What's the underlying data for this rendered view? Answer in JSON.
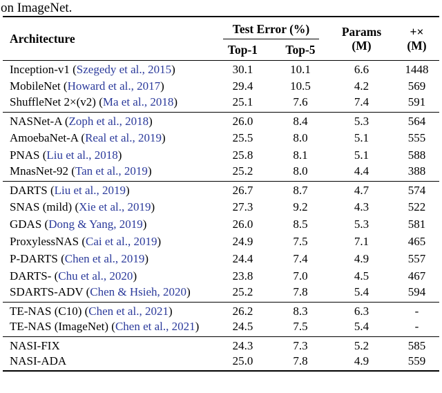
{
  "caption_fragment": "on ImageNet.",
  "colors": {
    "citation_link": "#2b3a9b",
    "text": "#000000",
    "rule": "#000000"
  },
  "header": {
    "architecture": "Architecture",
    "test_error": "Test Error (%)",
    "top1": "Top-1",
    "top5": "Top-5",
    "params_line1": "Params",
    "params_line2": "(M)",
    "flops_line1": "+×",
    "flops_line2": "(M)"
  },
  "groups": [
    {
      "rows": [
        {
          "name": "Inception-v1",
          "citation": "Szegedy et al., 2015",
          "top1": "30.1",
          "top5": "10.1",
          "params": "6.6",
          "flops": "1448"
        },
        {
          "name": "MobileNet",
          "citation": "Howard et al., 2017",
          "top1": "29.4",
          "top5": "10.5",
          "params": "4.2",
          "flops": "569"
        },
        {
          "name": "ShuffleNet 2×(v2)",
          "citation": "Ma et al., 2018",
          "top1": "25.1",
          "top5": "7.6",
          "params": "7.4",
          "flops": "591"
        }
      ]
    },
    {
      "rows": [
        {
          "name": "NASNet-A",
          "citation": "Zoph et al., 2018",
          "top1": "26.0",
          "top5": "8.4",
          "params": "5.3",
          "flops": "564"
        },
        {
          "name": "AmoebaNet-A",
          "citation": "Real et al., 2019",
          "top1": "25.5",
          "top5": "8.0",
          "params": "5.1",
          "flops": "555"
        },
        {
          "name": "PNAS",
          "citation": "Liu et al., 2018",
          "top1": "25.8",
          "top5": "8.1",
          "params": "5.1",
          "flops": "588"
        },
        {
          "name": "MnasNet-92",
          "citation": "Tan et al., 2019",
          "top1": "25.2",
          "top5": "8.0",
          "params": "4.4",
          "flops": "388"
        }
      ]
    },
    {
      "rows": [
        {
          "name": "DARTS",
          "citation": "Liu et al., 2019",
          "top1": "26.7",
          "top5": "8.7",
          "params": "4.7",
          "flops": "574"
        },
        {
          "name": "SNAS (mild)",
          "citation": "Xie et al., 2019",
          "top1": "27.3",
          "top5": "9.2",
          "params": "4.3",
          "flops": "522"
        },
        {
          "name": "GDAS",
          "citation": "Dong & Yang, 2019",
          "top1": "26.0",
          "top5": "8.5",
          "params": "5.3",
          "flops": "581"
        },
        {
          "name": "ProxylessNAS",
          "citation": "Cai et al., 2019",
          "top1": "24.9",
          "top5": "7.5",
          "params": "7.1",
          "flops": "465"
        },
        {
          "name": "P-DARTS",
          "citation": "Chen et al., 2019",
          "top1": "24.4",
          "top5": "7.4",
          "params": "4.9",
          "flops": "557"
        },
        {
          "name": "DARTS-",
          "citation": "Chu et al., 2020",
          "top1": "23.8",
          "top5": "7.0",
          "params": "4.5",
          "flops": "467"
        },
        {
          "name": "SDARTS-ADV",
          "citation": "Chen & Hsieh, 2020",
          "top1": "25.2",
          "top5": "7.8",
          "params": "5.4",
          "flops": "594"
        }
      ]
    },
    {
      "rows": [
        {
          "name": "TE-NAS (C10)",
          "citation": "Chen et al., 2021",
          "top1": "26.2",
          "top5": "8.3",
          "params": "6.3",
          "flops": "-"
        },
        {
          "name": "TE-NAS (ImageNet)",
          "citation": "Chen et al., 2021",
          "top1": "24.5",
          "top5": "7.5",
          "params": "5.4",
          "flops": "-"
        }
      ]
    },
    {
      "rows": [
        {
          "name": "NASI-FIX",
          "citation": null,
          "top1": "24.3",
          "top5": "7.3",
          "params": "5.2",
          "flops": "585"
        },
        {
          "name": "NASI-ADA",
          "citation": null,
          "top1": "25.0",
          "top5": "7.8",
          "params": "4.9",
          "flops": "559"
        }
      ]
    }
  ]
}
